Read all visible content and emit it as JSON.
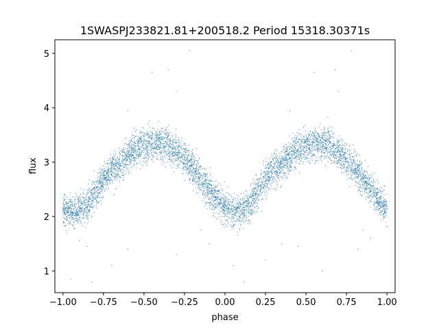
{
  "chart_data": {
    "type": "scatter",
    "title": "1SWASPJ233821.81+200518.2 Period 15318.30371s",
    "xlabel": "phase",
    "ylabel": "flux",
    "xlim": [
      -1.05,
      1.05
    ],
    "ylim": [
      0.6,
      5.25
    ],
    "xticks": [
      -1.0,
      -0.75,
      -0.5,
      -0.25,
      0.0,
      0.25,
      0.5,
      0.75,
      1.0
    ],
    "xtick_labels": [
      "−1.00",
      "−0.75",
      "−0.50",
      "−0.25",
      "0.00",
      "0.25",
      "0.50",
      "0.75",
      "1.00"
    ],
    "yticks": [
      1,
      2,
      3,
      4,
      5
    ],
    "ytick_labels": [
      "1",
      "2",
      "3",
      "4",
      "5"
    ],
    "grid": false,
    "color": "#1f77b4",
    "phase_curve": {
      "phase": [
        0.0,
        0.05,
        0.1,
        0.15,
        0.2,
        0.25,
        0.3,
        0.35,
        0.4,
        0.45,
        0.5,
        0.55,
        0.6,
        0.65,
        0.7,
        0.75,
        0.8,
        0.85,
        0.9,
        0.95,
        1.0
      ],
      "flux": [
        2.15,
        2.1,
        2.12,
        2.2,
        2.45,
        2.7,
        2.85,
        2.95,
        3.1,
        3.25,
        3.3,
        3.35,
        3.35,
        3.3,
        3.2,
        3.05,
        2.9,
        2.7,
        2.5,
        2.3,
        2.15
      ],
      "scatter": 0.15,
      "points_per_unit_phase": 2600
    },
    "outliers": [
      [
        -0.95,
        0.85
      ],
      [
        -0.9,
        1.55
      ],
      [
        -0.85,
        1.45
      ],
      [
        -0.82,
        0.8
      ],
      [
        -0.7,
        1.1
      ],
      [
        -0.6,
        1.4
      ],
      [
        -0.45,
        4.65
      ],
      [
        -0.35,
        4.7
      ],
      [
        -0.3,
        1.3
      ],
      [
        -0.1,
        1.5
      ],
      [
        0.05,
        1.1
      ],
      [
        0.12,
        0.8
      ],
      [
        0.25,
        1.2
      ],
      [
        0.35,
        1.5
      ],
      [
        0.45,
        1.45
      ],
      [
        0.55,
        4.65
      ],
      [
        0.6,
        1.0
      ],
      [
        0.68,
        4.7
      ],
      [
        0.78,
        5.05
      ],
      [
        0.82,
        1.4
      ],
      [
        0.9,
        1.6
      ],
      [
        -0.22,
        5.05
      ],
      [
        -0.3,
        4.3
      ],
      [
        0.7,
        4.3
      ],
      [
        0.4,
        3.95
      ],
      [
        -0.6,
        3.95
      ],
      [
        -0.15,
        1.75
      ],
      [
        0.85,
        1.75
      ]
    ]
  }
}
